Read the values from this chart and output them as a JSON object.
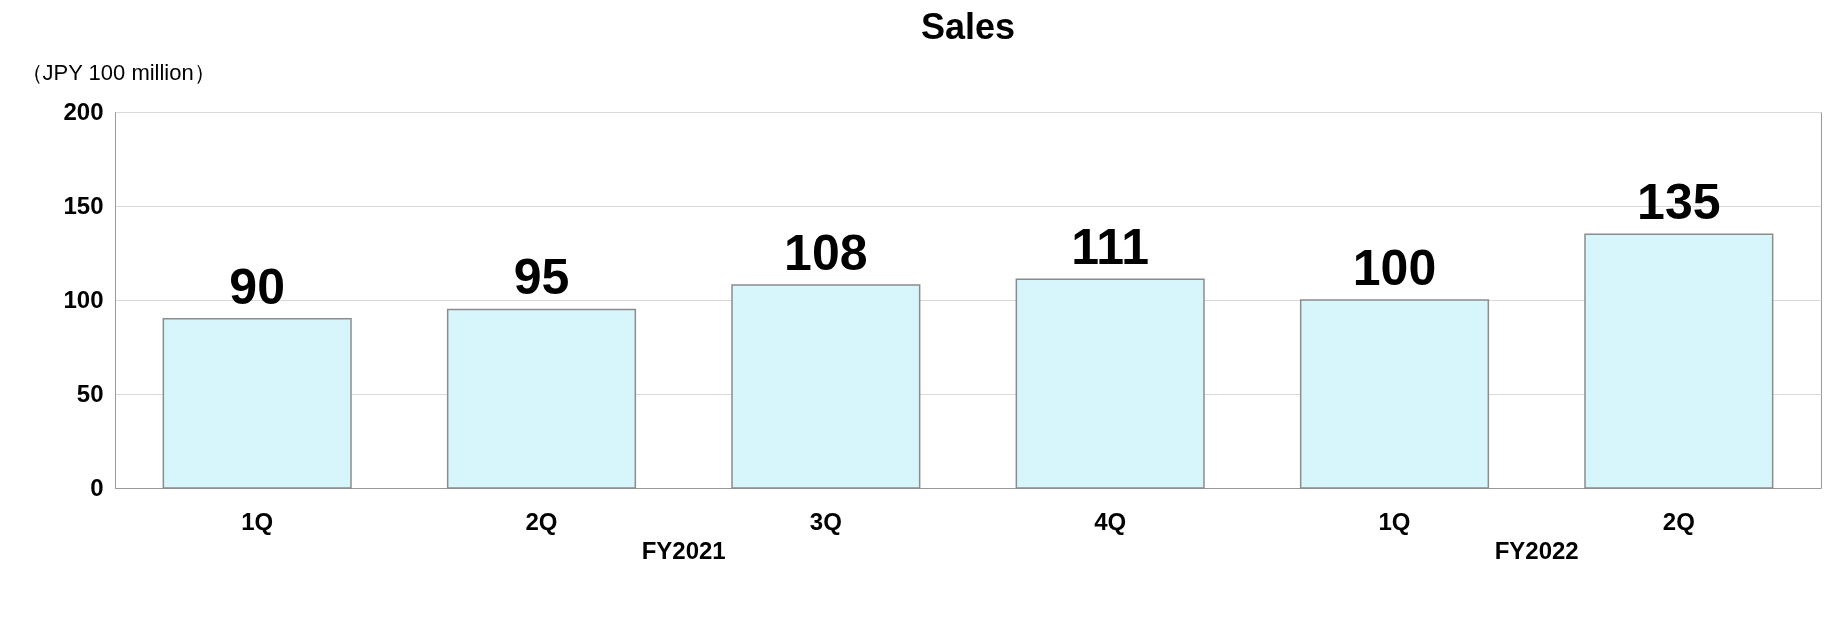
{
  "chart_data": {
    "type": "bar",
    "title": "Sales",
    "ylabel": "（JPY 100 million）",
    "categories": [
      "1Q",
      "2Q",
      "3Q",
      "4Q",
      "1Q",
      "2Q"
    ],
    "values": [
      90,
      95,
      108,
      111,
      100,
      135
    ],
    "color": "#d6f6fc",
    "ylim": [
      0,
      200
    ],
    "yticks": [
      0,
      50,
      100,
      150,
      200
    ],
    "grid": "y",
    "data_labels": true,
    "annotations": [
      "FY2021",
      "FY2022"
    ]
  }
}
